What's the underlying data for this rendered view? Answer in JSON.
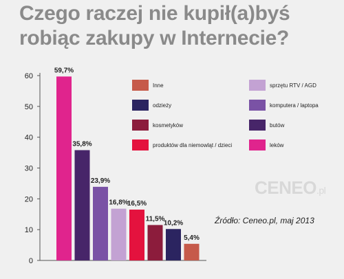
{
  "title_line1": "Czego raczej nie kupił(a)byś",
  "title_line2": "robiąc zakupy w Internecie?",
  "source": "Źródło: Ceneo.pl, maj 2013",
  "watermark": {
    "main": "CENEO",
    "suffix": ".pl"
  },
  "chart_data": {
    "type": "bar",
    "categories": [
      "leków",
      "butów",
      "komputera / laptopa",
      "sprzętu RTV / AGD",
      "produktów dla niemowląt / dzieci",
      "kosmetyków",
      "odzieży",
      "Inne"
    ],
    "values": [
      59.7,
      35.8,
      23.9,
      16.8,
      16.5,
      11.5,
      10.2,
      5.4
    ],
    "value_labels": [
      "59,7%",
      "35,8%",
      "23,9%",
      "16,8%",
      "16,5%",
      "11,5%",
      "10,2%",
      "5,4%"
    ],
    "colors": [
      "#e0248d",
      "#472569",
      "#7a52a5",
      "#c3a2d3",
      "#e4123e",
      "#8c1c3c",
      "#2b2460",
      "#c65a4a"
    ],
    "ylim": [
      0,
      60
    ],
    "yticks": [
      "0",
      "10",
      "20",
      "30",
      "40",
      "50",
      "60"
    ],
    "grid": false,
    "legend_placement": "top-right"
  },
  "legend": [
    {
      "label": "Inne",
      "color": "#c65a4a"
    },
    {
      "label": "odzieży",
      "color": "#2b2460"
    },
    {
      "label": "kosmetyków",
      "color": "#8c1c3c"
    },
    {
      "label": "produktów dla niemowląt / dzieci",
      "color": "#e4123e"
    },
    {
      "label": "sprzętu RTV / AGD",
      "color": "#c3a2d3"
    },
    {
      "label": "komputera / laptopa",
      "color": "#7a52a5"
    },
    {
      "label": "butów",
      "color": "#472569"
    },
    {
      "label": "leków",
      "color": "#e0248d"
    }
  ]
}
